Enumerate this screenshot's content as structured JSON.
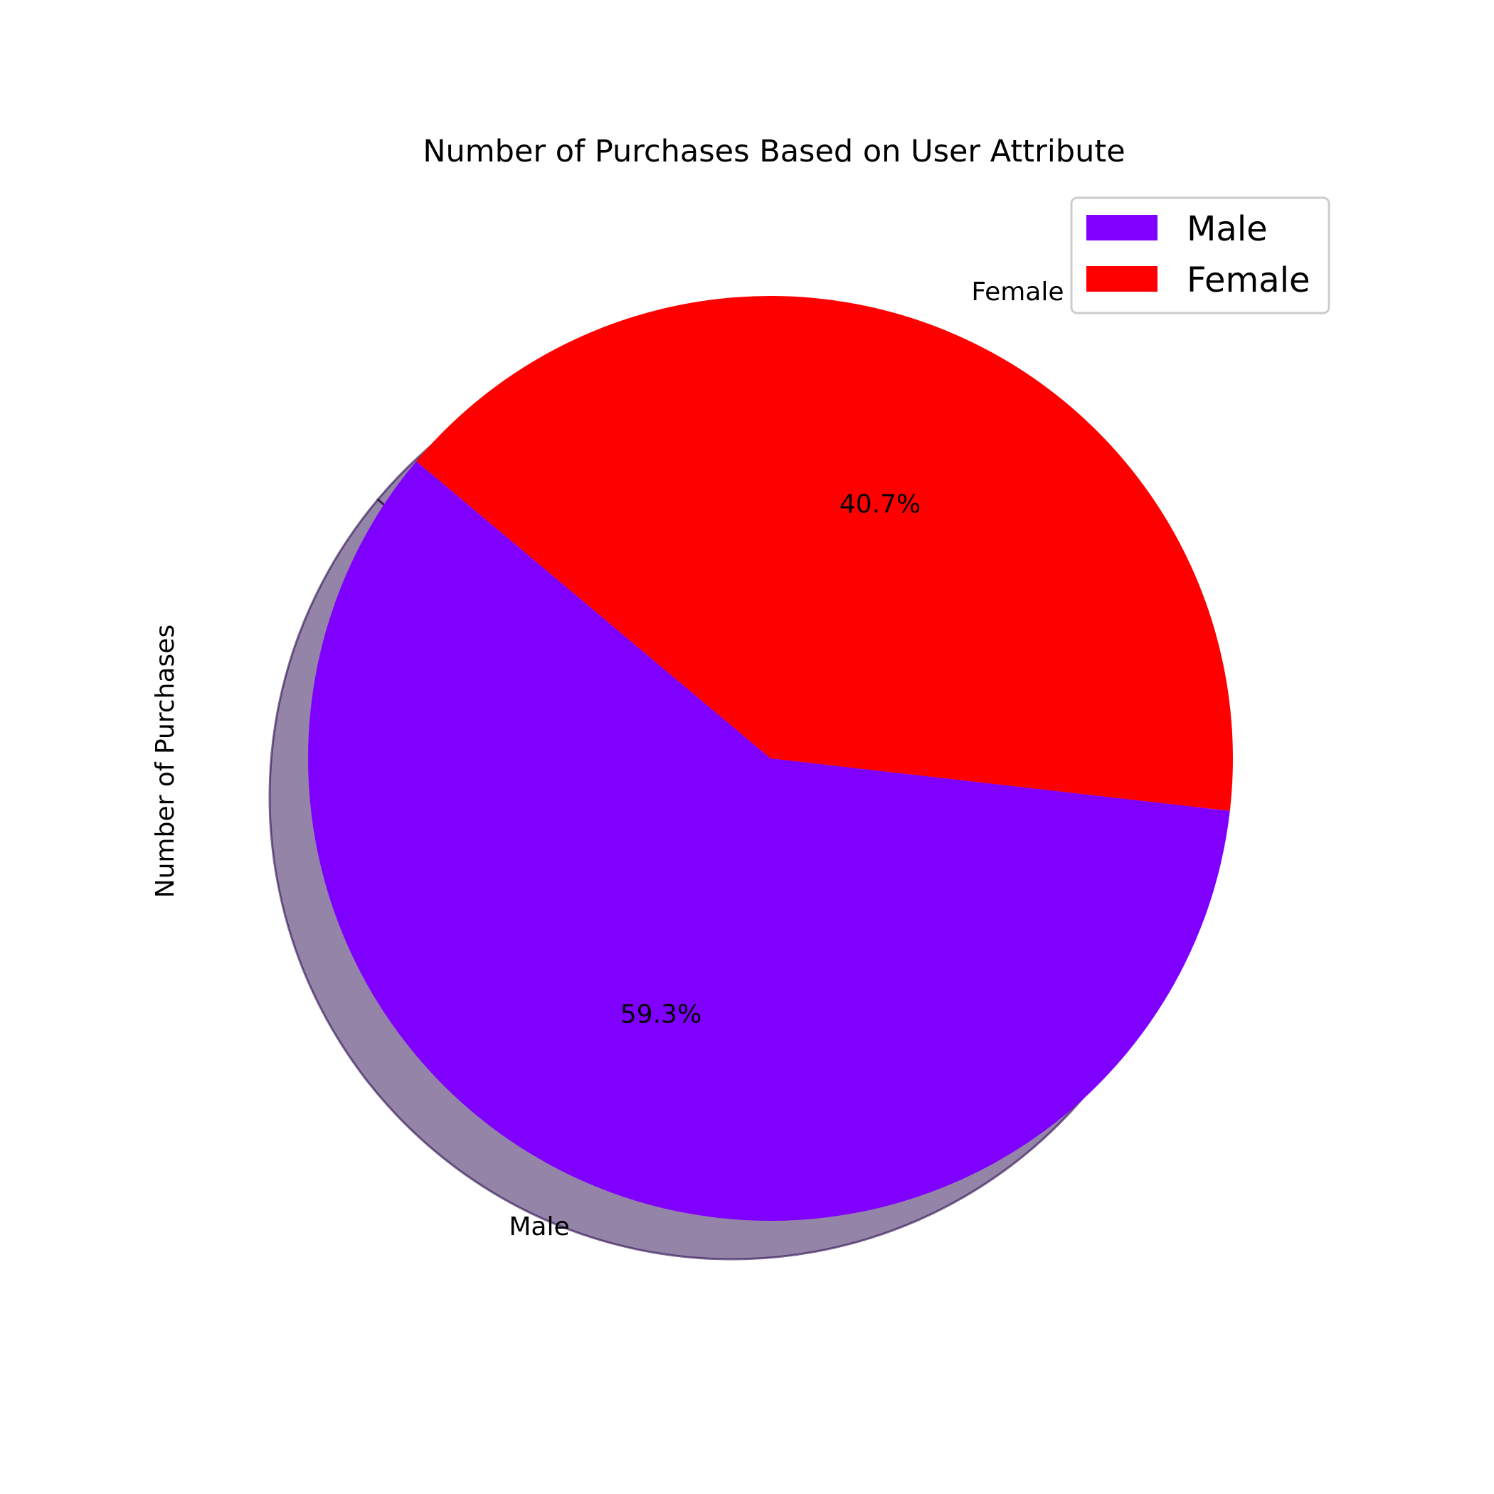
{
  "chart_data": {
    "type": "pie",
    "title": "Number of Purchases Based on User Attribute",
    "ylabel": "Number of Purchases",
    "labels": [
      "Male",
      "Female"
    ],
    "values": [
      59.3,
      40.7
    ],
    "autopct": [
      "59.3%",
      "40.7%"
    ],
    "colors": [
      "#8000ff",
      "#ff0000"
    ],
    "shadow": true,
    "legend": {
      "location": "upper right",
      "entries": [
        "Male",
        "Female"
      ]
    }
  }
}
